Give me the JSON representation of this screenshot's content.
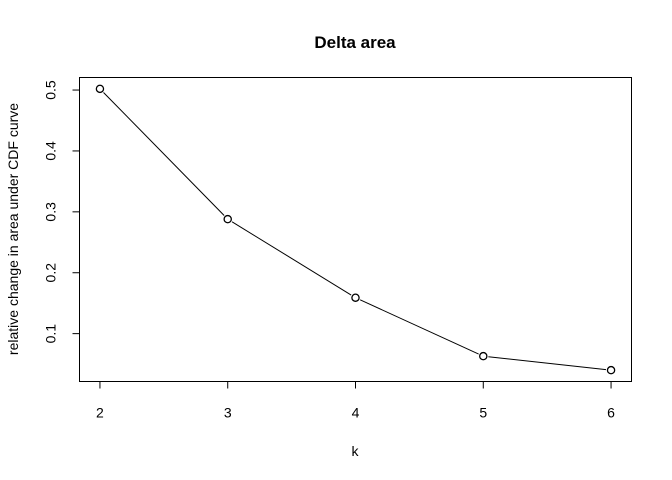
{
  "chart_data": {
    "type": "line",
    "title": "Delta area",
    "xlabel": "k",
    "ylabel": "relative change in area under CDF curve",
    "x": [
      2,
      3,
      4,
      5,
      6
    ],
    "series": [
      {
        "values": [
          0.502,
          0.288,
          0.159,
          0.063,
          0.04
        ]
      }
    ],
    "xticks": [
      "2",
      "3",
      "4",
      "5",
      "6"
    ],
    "yticks": [
      "0.1",
      "0.2",
      "0.3",
      "0.4",
      "0.5"
    ],
    "xlim": [
      1.84,
      6.16
    ],
    "ylim": [
      0.0214,
      0.5206
    ],
    "marker": "open-circle",
    "grid": false,
    "legend": "none"
  }
}
